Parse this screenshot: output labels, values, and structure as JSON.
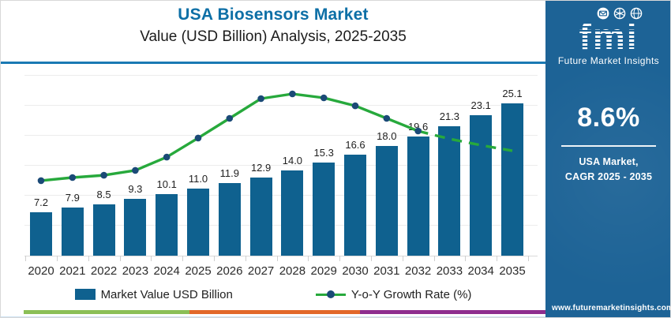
{
  "header": {
    "title": "USA Biosensors Market",
    "subtitle": "Value (USD Billion) Analysis, 2025-2035"
  },
  "chart_data": {
    "type": "bar",
    "title": "USA Biosensors Market",
    "subtitle": "Value (USD Billion) Analysis, 2025-2035",
    "categories": [
      "2020",
      "2021",
      "2022",
      "2023",
      "2024",
      "2025",
      "2026",
      "2027",
      "2028",
      "2029",
      "2030",
      "2031",
      "2032",
      "2033",
      "2034",
      "2035"
    ],
    "series": [
      {
        "name": "Market Value USD Billion",
        "type": "bar",
        "color": "#0f618f",
        "values": [
          7.2,
          7.9,
          8.5,
          9.3,
          10.1,
          11.0,
          11.9,
          12.9,
          14.0,
          15.3,
          16.6,
          18.0,
          19.6,
          21.3,
          23.1,
          25.1
        ]
      },
      {
        "name": "Y-o-Y Growth Rate (%)",
        "type": "line",
        "color": "#27a93c",
        "marker_color": "#1b4a77",
        "axis_labeled": false,
        "line_style": "solid with round markers 2020-2032, dashed without markers 2033-2035, peak at 2028",
        "plot_height_fraction": [
          0.417,
          0.434,
          0.447,
          0.474,
          0.548,
          0.654,
          0.763,
          0.873,
          0.899,
          0.877,
          0.833,
          0.763,
          0.693,
          0.649,
          0.614,
          0.583
        ]
      }
    ],
    "bar_axis_range": [
      0,
      30
    ],
    "grid": "horizontal-light",
    "legend_position": "bottom",
    "value_labels": "above each bar, one decimal"
  },
  "legend": {
    "items": [
      {
        "label": "Market Value USD Billion",
        "marker": "bar-swatch"
      },
      {
        "label": "Y-o-Y Growth Rate (%)",
        "marker": "line-dot"
      }
    ]
  },
  "sidebar": {
    "logo": {
      "brand": "fmi",
      "brand_caption": "Future Market Insights",
      "icons": [
        "mail-icon",
        "network-icon",
        "globe-icon"
      ]
    },
    "cagr_value": "8.6%",
    "cagr_caption_line1": "USA Market,",
    "cagr_caption_line2": "CAGR 2025 - 2035",
    "website": "www.futuremarketinsights.com"
  },
  "colors": {
    "title": "#0d6fa6",
    "divider": "#1a79b3",
    "sidebar_bg": "#1d6396",
    "bar": "#0f618f",
    "line": "#27a93c",
    "marker": "#1b4a77",
    "stripe_green": "#8bbf56",
    "stripe_orange": "#e2682a",
    "stripe_purple": "#8e2d8e",
    "bottom_edge": "#cde2f2"
  }
}
